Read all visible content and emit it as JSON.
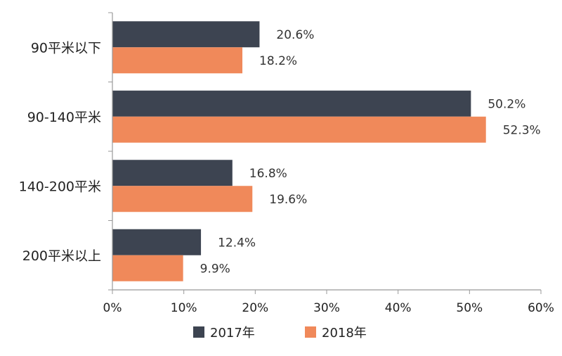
{
  "chart_data": {
    "type": "bar",
    "orientation": "horizontal",
    "categories": [
      "90平米以下",
      "90-140平米",
      "140-200平米",
      "200平米以上"
    ],
    "series": [
      {
        "name": "2017年",
        "color": "#3d4451",
        "values": [
          20.6,
          50.2,
          16.8,
          12.4
        ],
        "labels": [
          "20.6%",
          "50.2%",
          "16.8%",
          "12.4%"
        ]
      },
      {
        "name": "2018年",
        "color": "#f0895a",
        "values": [
          18.2,
          52.3,
          19.6,
          9.9
        ],
        "labels": [
          "18.2%",
          "52.3%",
          "19.6%",
          "9.9%"
        ]
      }
    ],
    "xlim": [
      0,
      60
    ],
    "xticks": [
      0,
      10,
      20,
      30,
      40,
      50,
      60
    ],
    "xtick_labels": [
      "0%",
      "10%",
      "20%",
      "30%",
      "40%",
      "50%",
      "60%"
    ],
    "grid": false,
    "legend_position": "bottom",
    "title": "",
    "xlabel": "",
    "ylabel": ""
  }
}
